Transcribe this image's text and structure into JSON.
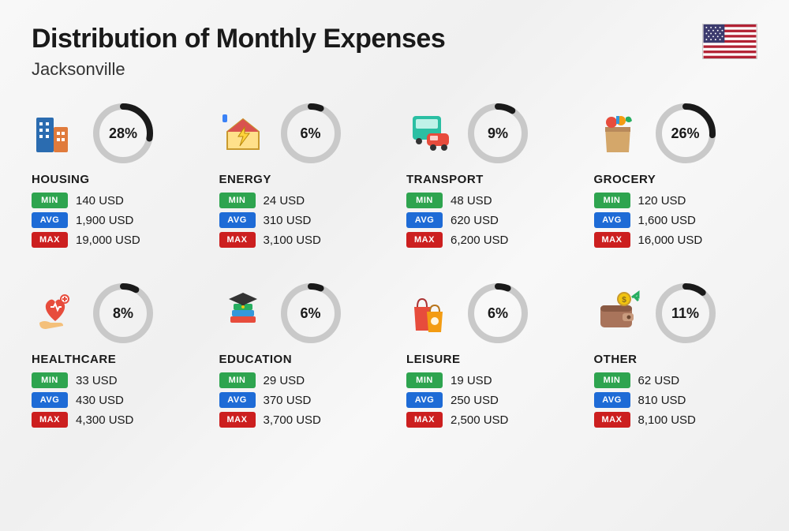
{
  "title": "Distribution of Monthly Expenses",
  "subtitle": "Jacksonville",
  "currency_suffix": "USD",
  "stat_labels": {
    "min": "MIN",
    "avg": "AVG",
    "max": "MAX"
  },
  "colors": {
    "min_bg": "#2ea44f",
    "avg_bg": "#1e6bd6",
    "max_bg": "#cc1f1f",
    "ring_track": "#c9c9c9",
    "ring_fill": "#1a1a1a",
    "text": "#1a1a1a"
  },
  "ring": {
    "size": 76,
    "stroke": 8
  },
  "flag_country": "usa",
  "categories": [
    {
      "key": "housing",
      "name": "HOUSING",
      "pct": 28,
      "min": "140",
      "avg": "1,900",
      "max": "19,000",
      "icon": "buildings"
    },
    {
      "key": "energy",
      "name": "ENERGY",
      "pct": 6,
      "min": "24",
      "avg": "310",
      "max": "3,100",
      "icon": "house-bolt"
    },
    {
      "key": "transport",
      "name": "TRANSPORT",
      "pct": 9,
      "min": "48",
      "avg": "620",
      "max": "6,200",
      "icon": "bus-car"
    },
    {
      "key": "grocery",
      "name": "GROCERY",
      "pct": 26,
      "min": "120",
      "avg": "1,600",
      "max": "16,000",
      "icon": "grocery-bag"
    },
    {
      "key": "healthcare",
      "name": "HEALTHCARE",
      "pct": 8,
      "min": "33",
      "avg": "430",
      "max": "4,300",
      "icon": "heart-hand"
    },
    {
      "key": "education",
      "name": "EDUCATION",
      "pct": 6,
      "min": "29",
      "avg": "370",
      "max": "3,700",
      "icon": "grad-books"
    },
    {
      "key": "leisure",
      "name": "LEISURE",
      "pct": 6,
      "min": "19",
      "avg": "250",
      "max": "2,500",
      "icon": "shopping-bags"
    },
    {
      "key": "other",
      "name": "OTHER",
      "pct": 11,
      "min": "62",
      "avg": "810",
      "max": "8,100",
      "icon": "wallet-coin"
    }
  ]
}
